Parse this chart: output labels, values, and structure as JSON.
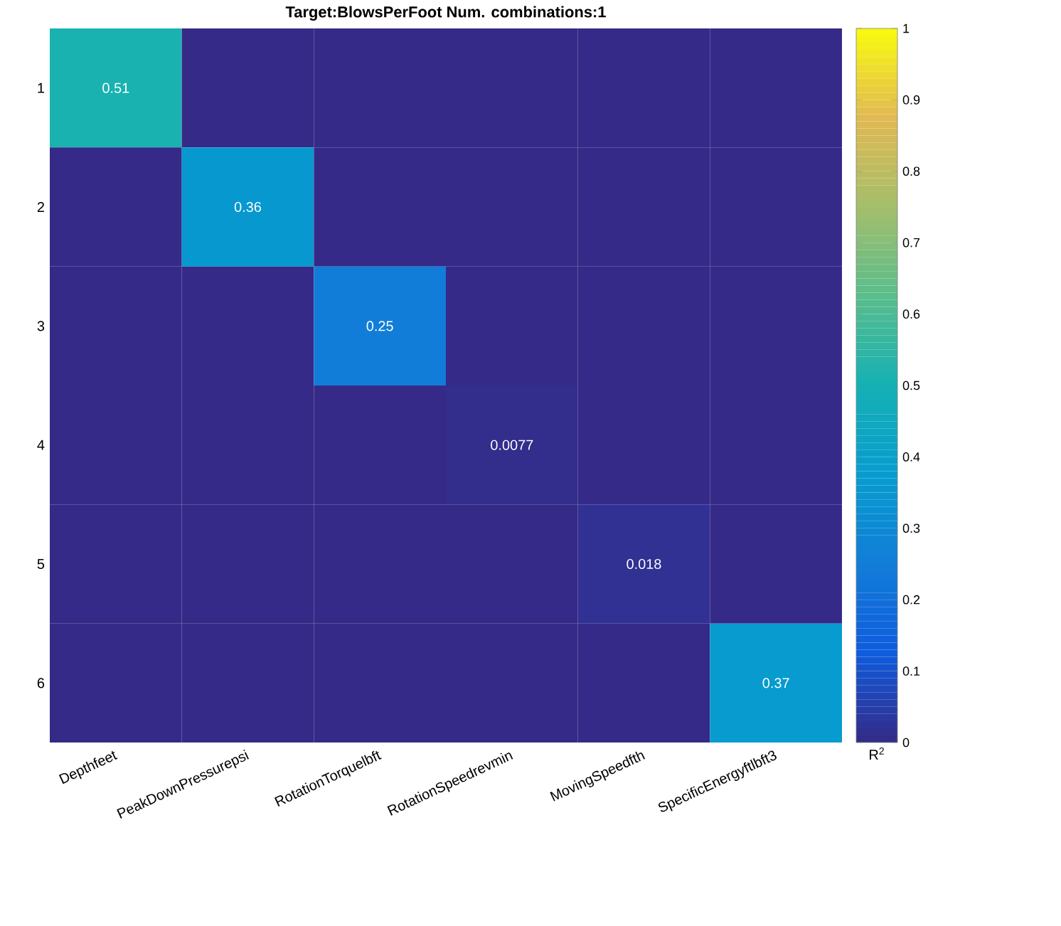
{
  "chart_data": {
    "type": "heatmap",
    "title": "Target:BlowsPerFoot    Num. combinations:1",
    "categories": [
      "Depthfeet",
      "PeakDownPressurepsi",
      "RotationTorquelbft",
      "RotationSpeedrevmin",
      "MovingSpeedfth",
      "SpecificEnergyftlbft3"
    ],
    "y_categories": [
      "1",
      "2",
      "3",
      "4",
      "5",
      "6"
    ],
    "cells": [
      [
        0.51,
        0,
        0,
        0,
        0,
        0
      ],
      [
        0,
        0.36,
        0,
        0,
        0,
        0
      ],
      [
        0,
        0,
        0.25,
        0,
        0,
        0
      ],
      [
        0,
        0,
        0,
        0.0077,
        0,
        0
      ],
      [
        0,
        0,
        0,
        0,
        0.018,
        0
      ],
      [
        0,
        0,
        0,
        0,
        0,
        0.37
      ]
    ],
    "cell_labels": [
      [
        "0.51",
        null,
        null,
        null,
        null,
        null
      ],
      [
        null,
        "0.36",
        null,
        null,
        null,
        null
      ],
      [
        null,
        null,
        "0.25",
        null,
        null,
        null
      ],
      [
        null,
        null,
        null,
        "0.0077",
        null,
        null
      ],
      [
        null,
        null,
        null,
        null,
        "0.018",
        null
      ],
      [
        null,
        null,
        null,
        null,
        null,
        "0.37"
      ]
    ],
    "clim": [
      0,
      1
    ],
    "cticks": [
      0,
      0.1,
      0.2,
      0.3,
      0.4,
      0.5,
      0.6,
      0.7,
      0.8,
      0.9,
      1
    ],
    "clabel": "R$^{2}$"
  }
}
